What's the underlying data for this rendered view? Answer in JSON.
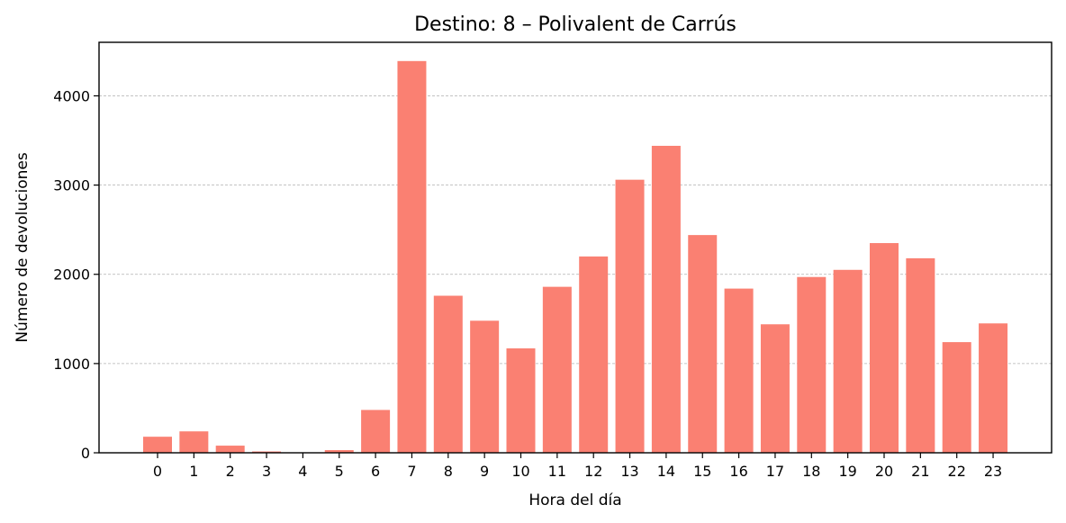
{
  "chart_data": {
    "type": "bar",
    "title": "Destino: 8 – Polivalent de Carrús",
    "xlabel": "Hora del día",
    "ylabel": "Número de devoluciones",
    "categories": [
      "0",
      "1",
      "2",
      "3",
      "4",
      "5",
      "6",
      "7",
      "8",
      "9",
      "10",
      "11",
      "12",
      "13",
      "14",
      "15",
      "16",
      "17",
      "18",
      "19",
      "20",
      "21",
      "22",
      "23"
    ],
    "values": [
      180,
      240,
      80,
      15,
      5,
      30,
      480,
      4390,
      1760,
      1480,
      1170,
      1860,
      2200,
      3060,
      3440,
      2440,
      1840,
      1440,
      1970,
      2050,
      2350,
      2180,
      1240,
      1450
    ],
    "ylim": [
      0,
      4600
    ],
    "yticks": [
      0,
      1000,
      2000,
      3000,
      4000
    ],
    "grid": "y",
    "bar_color": "#fa8072"
  }
}
